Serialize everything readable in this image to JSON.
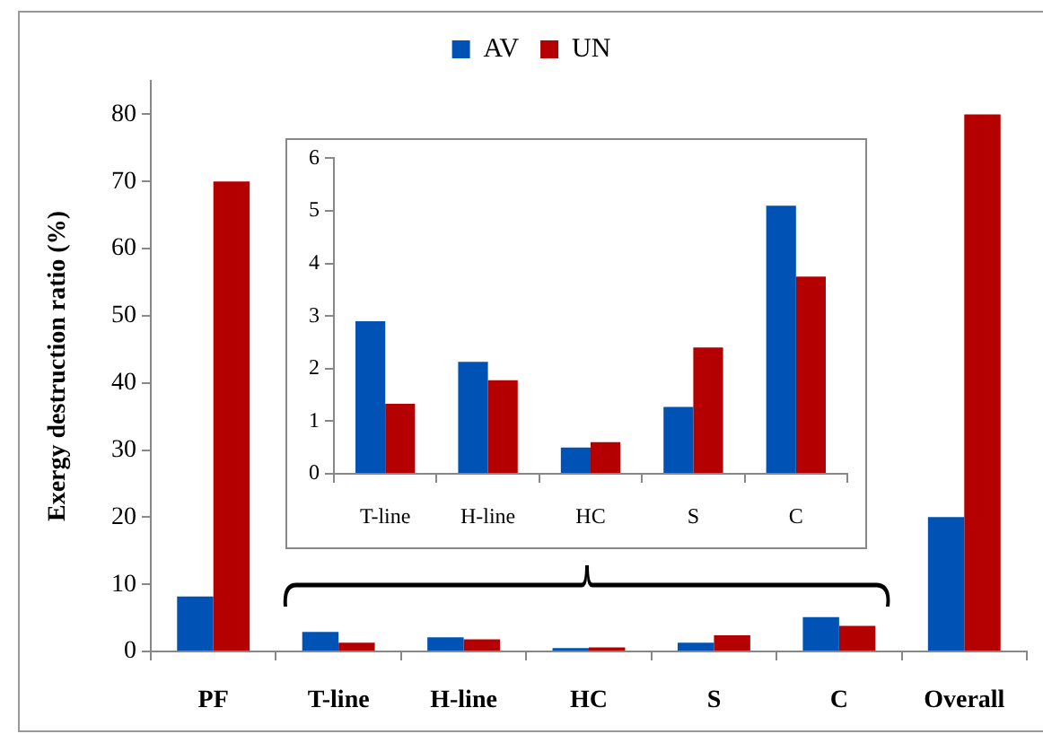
{
  "chart_data": [
    {
      "type": "bar",
      "ylabel": "Exergy destruction ratio (%)",
      "categories": [
        "PF",
        "T-line",
        "H-line",
        "HC",
        "S",
        "C",
        "Overall"
      ],
      "series": [
        {
          "name": "AV",
          "color": "#0052b4",
          "values": [
            8.2,
            2.9,
            2.1,
            0.5,
            1.3,
            5.1,
            20
          ]
        },
        {
          "name": "UN",
          "color": "#b40000",
          "values": [
            70,
            1.3,
            1.8,
            0.6,
            2.4,
            3.8,
            80
          ]
        }
      ],
      "ylim": [
        0,
        85
      ],
      "yticks": [
        0,
        10,
        20,
        30,
        40,
        50,
        60,
        70,
        80
      ],
      "grid": false,
      "legend": "top"
    },
    {
      "type": "bar",
      "categories": [
        "T-line",
        "H-line",
        "HC",
        "S",
        "C"
      ],
      "series": [
        {
          "color": "#0052b4",
          "values": [
            2.9,
            2.13,
            0.5,
            1.27,
            5.1
          ]
        },
        {
          "color": "#b40000",
          "values": [
            1.33,
            1.78,
            0.6,
            2.4,
            3.75
          ]
        }
      ],
      "ylim": [
        0,
        6
      ],
      "yticks": [
        0,
        1,
        2,
        3,
        4,
        5,
        6
      ],
      "grid": false,
      "legend": false
    }
  ]
}
